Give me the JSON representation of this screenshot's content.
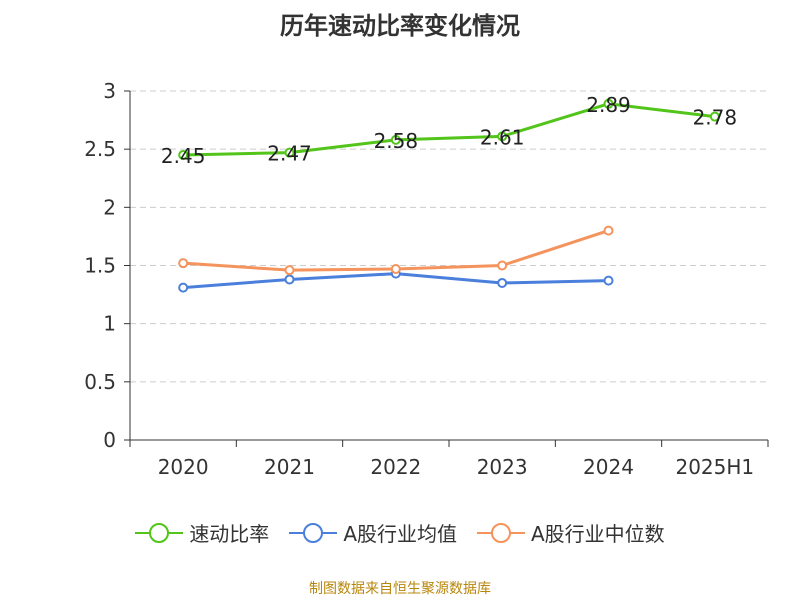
{
  "chart_data": {
    "type": "line",
    "title": "历年速动比率变化情况",
    "categories": [
      "2020",
      "2021",
      "2022",
      "2023",
      "2024",
      "2025H1"
    ],
    "yticks": [
      "0",
      "0.5",
      "1",
      "1.5",
      "2",
      "2.5",
      "3"
    ],
    "ylim": [
      0,
      3
    ],
    "grid": true,
    "legend_position": "bottom",
    "series": [
      {
        "name": "速动比率",
        "color": "#52c41a",
        "values": [
          2.45,
          2.47,
          2.58,
          2.61,
          2.89,
          2.78
        ],
        "labels": [
          "2.45",
          "2.47",
          "2.58",
          "2.61",
          "2.89",
          "2.78"
        ]
      },
      {
        "name": "A股行业均值",
        "color": "#4a7fdc",
        "values": [
          1.31,
          1.38,
          1.43,
          1.35,
          1.37,
          null
        ]
      },
      {
        "name": "A股行业中位数",
        "color": "#f4935b",
        "values": [
          1.52,
          1.46,
          1.47,
          1.5,
          1.8,
          null
        ]
      }
    ]
  },
  "source_note": "制图数据来自恒生聚源数据库"
}
